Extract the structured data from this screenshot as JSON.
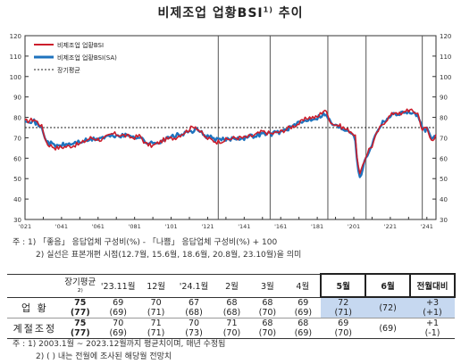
{
  "title": "비제조업 업황BSI",
  "title_sup": "1)",
  "chart_data": {
    "type": "line",
    "ylim": [
      30,
      120
    ],
    "yticks": [
      30,
      40,
      50,
      60,
      70,
      80,
      90,
      100,
      110,
      120
    ],
    "xtick_labels": [
      "'021",
      "'031",
      "'041",
      "'051",
      "'061",
      "'071",
      "'081",
      "'091",
      "'101",
      "'111",
      "'121",
      "'131",
      "'141",
      "'151",
      "'161",
      "'171",
      "'181",
      "'191",
      "'201",
      "'211",
      "'221",
      "'231",
      "'241"
    ],
    "x_start_year": 2002,
    "x_end": 2024.5,
    "legend": [
      "비제조업 업황BSI",
      "비제조업 업황BSI(SA)",
      "장기평균"
    ],
    "legend_position": "top-left",
    "long_term_average": 75,
    "regime_lines_years": [
      2012.58,
      2015.42,
      2018.58,
      2020.67,
      2023.75
    ],
    "series": [
      {
        "name": "비제조업 업황BSI",
        "color": "#cc1e2c",
        "knots": [
          [
            2002,
            78
          ],
          [
            2002.5,
            79
          ],
          [
            2002.9,
            76
          ],
          [
            2003.2,
            67
          ],
          [
            2003.7,
            65
          ],
          [
            2004.5,
            66
          ],
          [
            2005,
            67
          ],
          [
            2005.6,
            70
          ],
          [
            2006.2,
            69
          ],
          [
            2006.8,
            72
          ],
          [
            2007.5,
            71
          ],
          [
            2007.9,
            70
          ],
          [
            2008.3,
            71
          ],
          [
            2008.6,
            67
          ],
          [
            2009,
            66
          ],
          [
            2009.6,
            69
          ],
          [
            2010.2,
            70
          ],
          [
            2010.8,
            73
          ],
          [
            2011.3,
            76
          ],
          [
            2011.6,
            73
          ],
          [
            2011.9,
            70
          ],
          [
            2012.5,
            68
          ],
          [
            2013,
            69
          ],
          [
            2013.5,
            70
          ],
          [
            2014,
            70
          ],
          [
            2014.5,
            71
          ],
          [
            2015,
            73
          ],
          [
            2015.5,
            72
          ],
          [
            2016,
            73
          ],
          [
            2016.5,
            75
          ],
          [
            2017,
            77
          ],
          [
            2017.5,
            80
          ],
          [
            2018,
            80
          ],
          [
            2018.4,
            84
          ],
          [
            2018.8,
            77
          ],
          [
            2019.2,
            76
          ],
          [
            2019.6,
            74
          ],
          [
            2019.9,
            73
          ],
          [
            2020.1,
            70
          ],
          [
            2020.2,
            58
          ],
          [
            2020.35,
            51
          ],
          [
            2020.5,
            57
          ],
          [
            2020.8,
            64
          ],
          [
            2021,
            66
          ],
          [
            2021.3,
            73
          ],
          [
            2021.6,
            77
          ],
          [
            2021.9,
            80
          ],
          [
            2022.3,
            83
          ],
          [
            2022.6,
            81
          ],
          [
            2022.9,
            84
          ],
          [
            2023.2,
            83
          ],
          [
            2023.5,
            82
          ],
          [
            2023.75,
            74
          ],
          [
            2024.0,
            75
          ],
          [
            2024.2,
            69
          ],
          [
            2024.4,
            70
          ],
          [
            2024.5,
            72
          ]
        ]
      },
      {
        "name": "비제조업 업황BSI(SA)",
        "color": "#1e73be",
        "knots": [
          [
            2002,
            79
          ],
          [
            2002.5,
            78
          ],
          [
            2002.9,
            75
          ],
          [
            2003.2,
            68
          ],
          [
            2003.7,
            66
          ],
          [
            2004.5,
            67
          ],
          [
            2005,
            68
          ],
          [
            2005.6,
            69
          ],
          [
            2006.2,
            70
          ],
          [
            2006.8,
            71
          ],
          [
            2007.5,
            71
          ],
          [
            2007.9,
            71
          ],
          [
            2008.3,
            70
          ],
          [
            2008.6,
            68
          ],
          [
            2009,
            67
          ],
          [
            2009.6,
            69
          ],
          [
            2010.2,
            71
          ],
          [
            2010.8,
            72
          ],
          [
            2011.3,
            74
          ],
          [
            2011.6,
            73
          ],
          [
            2011.9,
            71
          ],
          [
            2012.5,
            69
          ],
          [
            2013,
            69
          ],
          [
            2013.5,
            70
          ],
          [
            2014,
            70
          ],
          [
            2014.5,
            71
          ],
          [
            2015,
            72
          ],
          [
            2015.5,
            72
          ],
          [
            2016,
            73
          ],
          [
            2016.5,
            75
          ],
          [
            2017,
            77
          ],
          [
            2017.5,
            79
          ],
          [
            2018,
            80
          ],
          [
            2018.4,
            82
          ],
          [
            2018.8,
            77
          ],
          [
            2019.2,
            75
          ],
          [
            2019.6,
            74
          ],
          [
            2019.9,
            73
          ],
          [
            2020.1,
            69
          ],
          [
            2020.2,
            57
          ],
          [
            2020.35,
            49
          ],
          [
            2020.5,
            56
          ],
          [
            2020.8,
            63
          ],
          [
            2021,
            67
          ],
          [
            2021.3,
            74
          ],
          [
            2021.6,
            78
          ],
          [
            2021.9,
            80
          ],
          [
            2022.3,
            82
          ],
          [
            2022.6,
            82
          ],
          [
            2022.9,
            83
          ],
          [
            2023.2,
            82
          ],
          [
            2023.5,
            81
          ],
          [
            2023.75,
            74
          ],
          [
            2024.0,
            74
          ],
          [
            2024.2,
            70
          ],
          [
            2024.4,
            70
          ],
          [
            2024.5,
            71
          ]
        ]
      }
    ]
  },
  "notes": {
    "n1": "주 : 1) 「좋음」 응답업체 구성비(%) - 「나쁨」 응답업체 구성비(%) + 100",
    "n2": "2) 실선은 표본개편 시점(12.7월, 15.6월, 18.6월, 20.8월, 23.10월)을 의미"
  },
  "table": {
    "headers": [
      "장기평균²⁾",
      "'23.11월",
      "12월",
      "'24.1월",
      "2월",
      "3월",
      "4월",
      "5월",
      "6월",
      "전월대비"
    ],
    "rows": [
      {
        "label": "업  황",
        "values": [
          [
            "75",
            "(77)"
          ],
          [
            "69",
            "(69)"
          ],
          [
            "70",
            "(71)"
          ],
          [
            "67",
            "(68)"
          ],
          [
            "68",
            "(68)"
          ],
          [
            "68",
            "(70)"
          ],
          [
            "69",
            "(69)"
          ],
          [
            "72",
            "(71)"
          ],
          [
            "",
            "(72)"
          ],
          [
            "+3",
            "(+1)"
          ]
        ]
      },
      {
        "label": "계절조정",
        "values": [
          [
            "75",
            "(77)"
          ],
          [
            "70",
            "(69)"
          ],
          [
            "71",
            "(71)"
          ],
          [
            "70",
            "(73)"
          ],
          [
            "71",
            "(70)"
          ],
          [
            "68",
            "(70)"
          ],
          [
            "68",
            "(69)"
          ],
          [
            "69",
            "(70)"
          ],
          [
            "",
            "(69)"
          ],
          [
            "+1",
            "(-1)"
          ]
        ]
      }
    ]
  },
  "footnotes": {
    "f1": "주 : 1) 2003.1월 ~ 2023.12월까지 평균치이며, 매년 수정됨",
    "f2": "2) ( ) 내는 전월에 조사된 해당월 전망치"
  }
}
